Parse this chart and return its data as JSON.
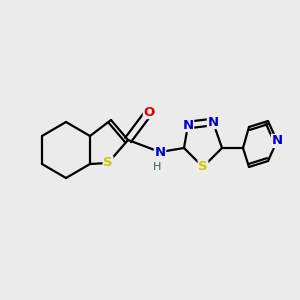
{
  "background_color": "#ebebeb",
  "atom_colors": {
    "C": "#000000",
    "N": "#0000cc",
    "O": "#dd0000",
    "S": "#cccc00",
    "H": "#406060"
  },
  "bond_color": "#000000",
  "bond_width": 1.6,
  "fig_size": [
    3.0,
    3.0
  ],
  "dpi": 100,
  "xlim": [
    0.0,
    1.0
  ],
  "ylim": [
    0.0,
    1.0
  ]
}
